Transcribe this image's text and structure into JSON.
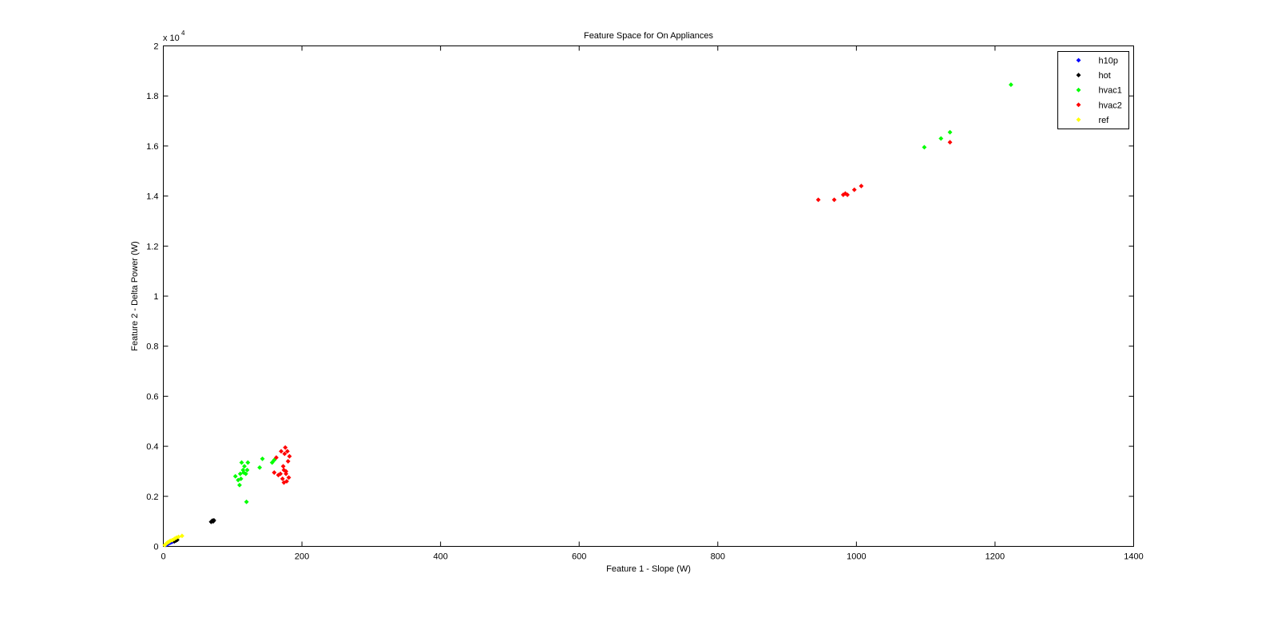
{
  "chart_data": {
    "type": "scatter",
    "title": "Feature Space for On Appliances",
    "xlabel": "Feature 1 - Slope (W)",
    "ylabel": "Feature 2 - Delta Power (W)",
    "xlim": [
      0,
      1400
    ],
    "ylim": [
      0,
      20000
    ],
    "x_ticks": [
      0,
      200,
      400,
      600,
      800,
      1000,
      1200,
      1400
    ],
    "x_tick_labels": [
      "0",
      "200",
      "400",
      "600",
      "800",
      "1000",
      "1200",
      "1400"
    ],
    "y_ticks": [
      0,
      2000,
      4000,
      6000,
      8000,
      10000,
      12000,
      14000,
      16000,
      18000,
      20000
    ],
    "y_tick_labels": [
      "0",
      "0.2",
      "0.4",
      "0.6",
      "0.8",
      "1",
      "1.2",
      "1.4",
      "1.6",
      "1.8",
      "2"
    ],
    "y_scale_label": {
      "base": "x 10",
      "exponent": "4"
    },
    "grid": false,
    "legend_position": "top-right",
    "series": [
      {
        "name": "h10p",
        "color": "#0000ff",
        "points": [
          [
            4,
            60
          ],
          [
            6,
            90
          ],
          [
            8,
            120
          ],
          [
            10,
            150
          ],
          [
            12,
            170
          ],
          [
            14,
            200
          ]
        ]
      },
      {
        "name": "hot",
        "color": "#000000",
        "points": [
          [
            16,
            200
          ],
          [
            18,
            230
          ],
          [
            20,
            260
          ],
          [
            69,
            980
          ],
          [
            70,
            1010
          ],
          [
            71,
            1030
          ],
          [
            72,
            1000
          ],
          [
            73,
            1040
          ]
        ]
      },
      {
        "name": "hvac1",
        "color": "#00ff00",
        "points": [
          [
            104,
            2800
          ],
          [
            108,
            2650
          ],
          [
            110,
            2450
          ],
          [
            111,
            2900
          ],
          [
            112,
            2700
          ],
          [
            113,
            3350
          ],
          [
            115,
            3050
          ],
          [
            116,
            2950
          ],
          [
            117,
            3200
          ],
          [
            119,
            2900
          ],
          [
            120,
            1780
          ],
          [
            121,
            3050
          ],
          [
            122,
            3350
          ],
          [
            139,
            3150
          ],
          [
            143,
            3500
          ],
          [
            157,
            3350
          ],
          [
            160,
            3450
          ],
          [
            1098,
            15950
          ],
          [
            1122,
            16300
          ],
          [
            1135,
            16550
          ],
          [
            1223,
            18450
          ]
        ]
      },
      {
        "name": "hvac2",
        "color": "#ff0000",
        "points": [
          [
            160,
            2950
          ],
          [
            163,
            3550
          ],
          [
            166,
            2850
          ],
          [
            169,
            2900
          ],
          [
            170,
            3800
          ],
          [
            172,
            2700
          ],
          [
            173,
            3200
          ],
          [
            174,
            3050
          ],
          [
            174,
            2550
          ],
          [
            175,
            3700
          ],
          [
            176,
            3950
          ],
          [
            177,
            2900
          ],
          [
            177,
            3000
          ],
          [
            178,
            2600
          ],
          [
            179,
            3800
          ],
          [
            180,
            3400
          ],
          [
            181,
            2750
          ],
          [
            182,
            3600
          ],
          [
            945,
            13850
          ],
          [
            968,
            13850
          ],
          [
            981,
            14050
          ],
          [
            984,
            14100
          ],
          [
            987,
            14050
          ],
          [
            997,
            14250
          ],
          [
            1007,
            14400
          ],
          [
            1135,
            16150
          ]
        ]
      },
      {
        "name": "ref",
        "color": "#ffff00",
        "points": [
          [
            2,
            50
          ],
          [
            4,
            100
          ],
          [
            6,
            150
          ],
          [
            8,
            180
          ],
          [
            10,
            220
          ],
          [
            13,
            250
          ],
          [
            16,
            300
          ],
          [
            19,
            350
          ],
          [
            22,
            380
          ],
          [
            27,
            420
          ]
        ]
      }
    ]
  }
}
